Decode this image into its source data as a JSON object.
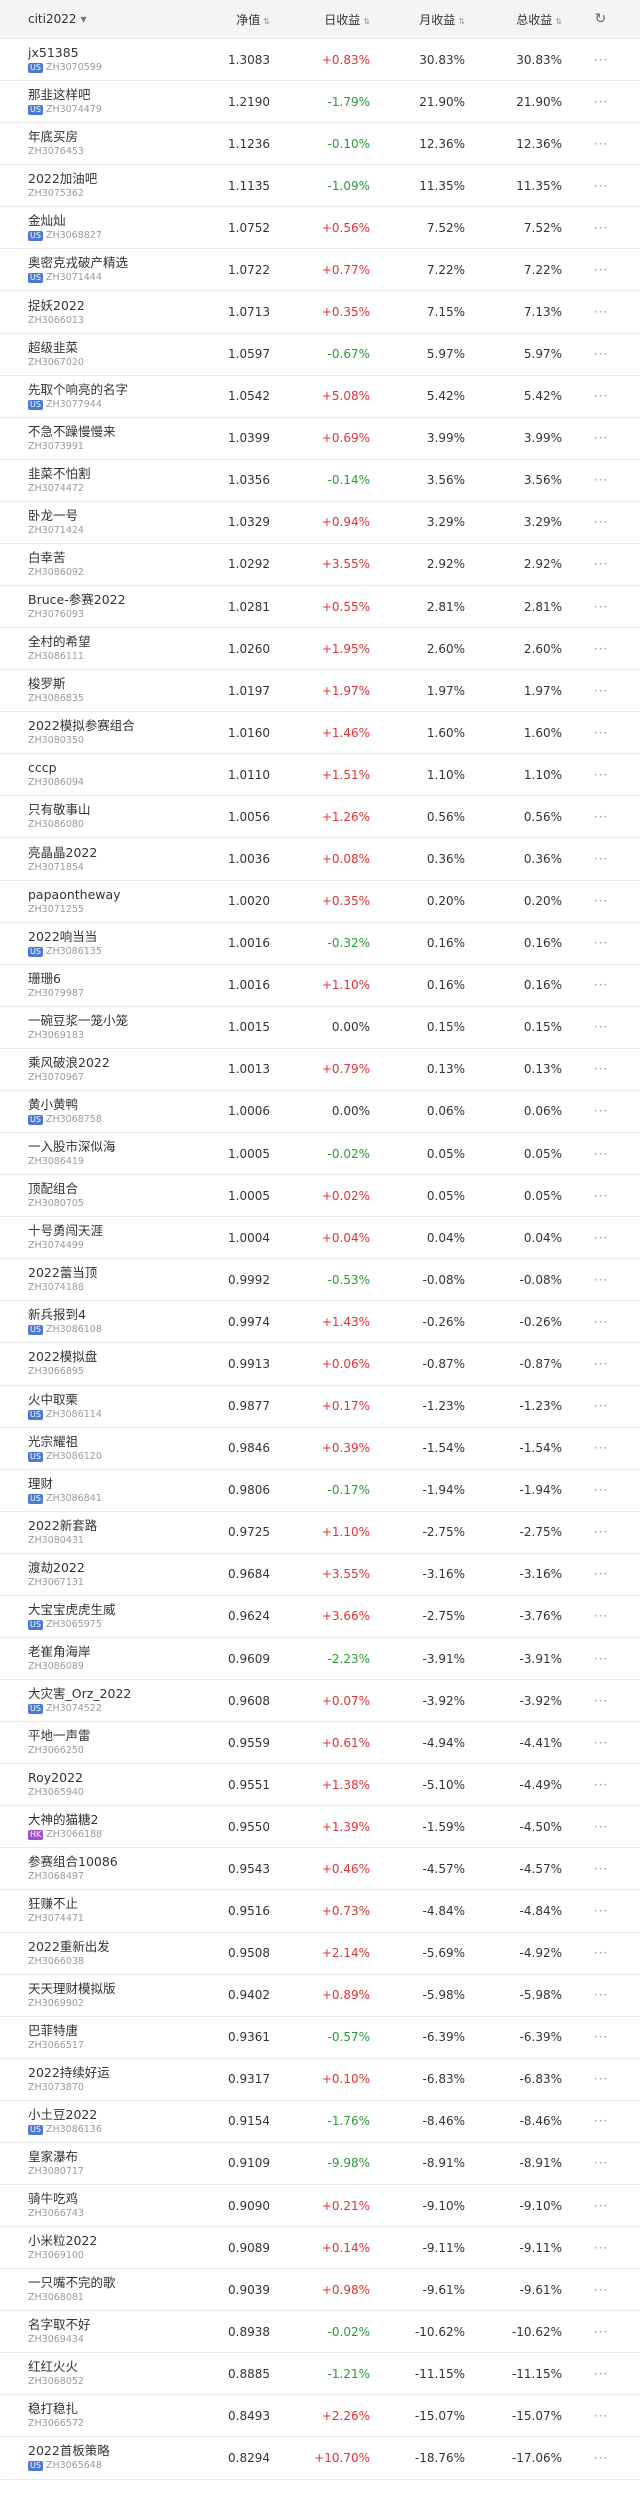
{
  "header": {
    "group_select": "citi2022",
    "col_nav": "净值",
    "col_day": "日收益",
    "col_month": "月收益",
    "col_total": "总收益"
  },
  "colors": {
    "positive": "#e33232",
    "negative": "#2c9b36",
    "us_tag": "#4a79d8",
    "hk_tag": "#a04fd1"
  },
  "rows": [
    {
      "name": "jx51385",
      "tag": "US",
      "code": "ZH3070599",
      "nav": "1.3083",
      "day": "+0.83%",
      "month": "30.83%",
      "total": "30.83%"
    },
    {
      "name": "那韭这样吧",
      "tag": "US",
      "code": "ZH3074479",
      "nav": "1.2190",
      "day": "-1.79%",
      "month": "21.90%",
      "total": "21.90%"
    },
    {
      "name": "年底买房",
      "tag": "",
      "code": "ZH3076453",
      "nav": "1.1236",
      "day": "-0.10%",
      "month": "12.36%",
      "total": "12.36%"
    },
    {
      "name": "2022加油吧",
      "tag": "",
      "code": "ZH3075362",
      "nav": "1.1135",
      "day": "-1.09%",
      "month": "11.35%",
      "total": "11.35%"
    },
    {
      "name": "金灿灿",
      "tag": "US",
      "code": "ZH3068827",
      "nav": "1.0752",
      "day": "+0.56%",
      "month": "7.52%",
      "total": "7.52%"
    },
    {
      "name": "奥密克戎破产精选",
      "tag": "US",
      "code": "ZH3071444",
      "nav": "1.0722",
      "day": "+0.77%",
      "month": "7.22%",
      "total": "7.22%"
    },
    {
      "name": "捉妖2022",
      "tag": "",
      "code": "ZH3066013",
      "nav": "1.0713",
      "day": "+0.35%",
      "month": "7.15%",
      "total": "7.13%"
    },
    {
      "name": "超级韭菜",
      "tag": "",
      "code": "ZH3067020",
      "nav": "1.0597",
      "day": "-0.67%",
      "month": "5.97%",
      "total": "5.97%"
    },
    {
      "name": "先取个响亮的名字",
      "tag": "US",
      "code": "ZH3077944",
      "nav": "1.0542",
      "day": "+5.08%",
      "month": "5.42%",
      "total": "5.42%"
    },
    {
      "name": "不急不躁慢慢来",
      "tag": "",
      "code": "ZH3073991",
      "nav": "1.0399",
      "day": "+0.69%",
      "month": "3.99%",
      "total": "3.99%"
    },
    {
      "name": "韭菜不怕割",
      "tag": "",
      "code": "ZH3074472",
      "nav": "1.0356",
      "day": "-0.14%",
      "month": "3.56%",
      "total": "3.56%"
    },
    {
      "name": "卧龙一号",
      "tag": "",
      "code": "ZH3071424",
      "nav": "1.0329",
      "day": "+0.94%",
      "month": "3.29%",
      "total": "3.29%"
    },
    {
      "name": "白幸苦",
      "tag": "",
      "code": "ZH3086092",
      "nav": "1.0292",
      "day": "+3.55%",
      "month": "2.92%",
      "total": "2.92%"
    },
    {
      "name": "Bruce-参赛2022",
      "tag": "",
      "code": "ZH3076093",
      "nav": "1.0281",
      "day": "+0.55%",
      "month": "2.81%",
      "total": "2.81%"
    },
    {
      "name": "全村的希望",
      "tag": "",
      "code": "ZH3086111",
      "nav": "1.0260",
      "day": "+1.95%",
      "month": "2.60%",
      "total": "2.60%"
    },
    {
      "name": "梭罗斯",
      "tag": "",
      "code": "ZH3086835",
      "nav": "1.0197",
      "day": "+1.97%",
      "month": "1.97%",
      "total": "1.97%"
    },
    {
      "name": "2022模拟参赛组合",
      "tag": "",
      "code": "ZH3080350",
      "nav": "1.0160",
      "day": "+1.46%",
      "month": "1.60%",
      "total": "1.60%"
    },
    {
      "name": "cccp",
      "tag": "",
      "code": "ZH3086094",
      "nav": "1.0110",
      "day": "+1.51%",
      "month": "1.10%",
      "total": "1.10%"
    },
    {
      "name": "只有敬事山",
      "tag": "",
      "code": "ZH3086080",
      "nav": "1.0056",
      "day": "+1.26%",
      "month": "0.56%",
      "total": "0.56%"
    },
    {
      "name": "亮晶晶2022",
      "tag": "",
      "code": "ZH3071854",
      "nav": "1.0036",
      "day": "+0.08%",
      "month": "0.36%",
      "total": "0.36%"
    },
    {
      "name": "papaontheway",
      "tag": "",
      "code": "ZH3071255",
      "nav": "1.0020",
      "day": "+0.35%",
      "month": "0.20%",
      "total": "0.20%"
    },
    {
      "name": "2022响当当",
      "tag": "US",
      "code": "ZH3086135",
      "nav": "1.0016",
      "day": "-0.32%",
      "month": "0.16%",
      "total": "0.16%"
    },
    {
      "name": "珊珊6",
      "tag": "",
      "code": "ZH3079987",
      "nav": "1.0016",
      "day": "+1.10%",
      "month": "0.16%",
      "total": "0.16%"
    },
    {
      "name": "一碗豆浆一笼小笼",
      "tag": "",
      "code": "ZH3069183",
      "nav": "1.0015",
      "day": "0.00%",
      "month": "0.15%",
      "total": "0.15%"
    },
    {
      "name": "乘风破浪2022",
      "tag": "",
      "code": "ZH3070967",
      "nav": "1.0013",
      "day": "+0.79%",
      "month": "0.13%",
      "total": "0.13%"
    },
    {
      "name": "黄小黄鸭",
      "tag": "US",
      "code": "ZH3068758",
      "nav": "1.0006",
      "day": "0.00%",
      "month": "0.06%",
      "total": "0.06%"
    },
    {
      "name": "一入股市深似海",
      "tag": "",
      "code": "ZH3086419",
      "nav": "1.0005",
      "day": "-0.02%",
      "month": "0.05%",
      "total": "0.05%"
    },
    {
      "name": "顶配组合",
      "tag": "",
      "code": "ZH3080705",
      "nav": "1.0005",
      "day": "+0.02%",
      "month": "0.05%",
      "total": "0.05%"
    },
    {
      "name": "十号勇闯天涯",
      "tag": "",
      "code": "ZH3074499",
      "nav": "1.0004",
      "day": "+0.04%",
      "month": "0.04%",
      "total": "0.04%"
    },
    {
      "name": "2022蕾当顶",
      "tag": "",
      "code": "ZH3074188",
      "nav": "0.9992",
      "day": "-0.53%",
      "month": "-0.08%",
      "total": "-0.08%"
    },
    {
      "name": "新兵报到4",
      "tag": "US",
      "code": "ZH3086108",
      "nav": "0.9974",
      "day": "+1.43%",
      "month": "-0.26%",
      "total": "-0.26%"
    },
    {
      "name": "2022模拟盘",
      "tag": "",
      "code": "ZH3066895",
      "nav": "0.9913",
      "day": "+0.06%",
      "month": "-0.87%",
      "total": "-0.87%"
    },
    {
      "name": "火中取栗",
      "tag": "US",
      "code": "ZH3086114",
      "nav": "0.9877",
      "day": "+0.17%",
      "month": "-1.23%",
      "total": "-1.23%"
    },
    {
      "name": "光宗耀祖",
      "tag": "US",
      "code": "ZH3086120",
      "nav": "0.9846",
      "day": "+0.39%",
      "month": "-1.54%",
      "total": "-1.54%"
    },
    {
      "name": "理财",
      "tag": "US",
      "code": "ZH3086841",
      "nav": "0.9806",
      "day": "-0.17%",
      "month": "-1.94%",
      "total": "-1.94%"
    },
    {
      "name": "2022新套路",
      "tag": "",
      "code": "ZH3080431",
      "nav": "0.9725",
      "day": "+1.10%",
      "month": "-2.75%",
      "total": "-2.75%"
    },
    {
      "name": "渡劫2022",
      "tag": "",
      "code": "ZH3067131",
      "nav": "0.9684",
      "day": "+3.55%",
      "month": "-3.16%",
      "total": "-3.16%"
    },
    {
      "name": "大宝宝虎虎生威",
      "tag": "US",
      "code": "ZH3065975",
      "nav": "0.9624",
      "day": "+3.66%",
      "month": "-2.75%",
      "total": "-3.76%"
    },
    {
      "name": "老崔角海岸",
      "tag": "",
      "code": "ZH3086089",
      "nav": "0.9609",
      "day": "-2.23%",
      "month": "-3.91%",
      "total": "-3.91%"
    },
    {
      "name": "大灾害_Orz_2022",
      "tag": "US",
      "code": "ZH3074522",
      "nav": "0.9608",
      "day": "+0.07%",
      "month": "-3.92%",
      "total": "-3.92%"
    },
    {
      "name": "平地一声雷",
      "tag": "",
      "code": "ZH3066250",
      "nav": "0.9559",
      "day": "+0.61%",
      "month": "-4.94%",
      "total": "-4.41%"
    },
    {
      "name": "Roy2022",
      "tag": "",
      "code": "ZH3065940",
      "nav": "0.9551",
      "day": "+1.38%",
      "month": "-5.10%",
      "total": "-4.49%"
    },
    {
      "name": "大神的猫糖2",
      "tag": "HK",
      "code": "ZH3066188",
      "nav": "0.9550",
      "day": "+1.39%",
      "month": "-1.59%",
      "total": "-4.50%"
    },
    {
      "name": "参赛组合10086",
      "tag": "",
      "code": "ZH3068497",
      "nav": "0.9543",
      "day": "+0.46%",
      "month": "-4.57%",
      "total": "-4.57%"
    },
    {
      "name": "狂赚不止",
      "tag": "",
      "code": "ZH3074471",
      "nav": "0.9516",
      "day": "+0.73%",
      "month": "-4.84%",
      "total": "-4.84%"
    },
    {
      "name": "2022重新出发",
      "tag": "",
      "code": "ZH3066038",
      "nav": "0.9508",
      "day": "+2.14%",
      "month": "-5.69%",
      "total": "-4.92%"
    },
    {
      "name": "天天理财模拟版",
      "tag": "",
      "code": "ZH3069902",
      "nav": "0.9402",
      "day": "+0.89%",
      "month": "-5.98%",
      "total": "-5.98%"
    },
    {
      "name": "巴菲特唐",
      "tag": "",
      "code": "ZH3066517",
      "nav": "0.9361",
      "day": "-0.57%",
      "month": "-6.39%",
      "total": "-6.39%"
    },
    {
      "name": "2022持续好运",
      "tag": "",
      "code": "ZH3073870",
      "nav": "0.9317",
      "day": "+0.10%",
      "month": "-6.83%",
      "total": "-6.83%"
    },
    {
      "name": "小土豆2022",
      "tag": "US",
      "code": "ZH3086136",
      "nav": "0.9154",
      "day": "-1.76%",
      "month": "-8.46%",
      "total": "-8.46%"
    },
    {
      "name": "皇家瀑布",
      "tag": "",
      "code": "ZH3080717",
      "nav": "0.9109",
      "day": "-9.98%",
      "month": "-8.91%",
      "total": "-8.91%"
    },
    {
      "name": "骑牛吃鸡",
      "tag": "",
      "code": "ZH3066743",
      "nav": "0.9090",
      "day": "+0.21%",
      "month": "-9.10%",
      "total": "-9.10%"
    },
    {
      "name": "小米粒2022",
      "tag": "",
      "code": "ZH3069100",
      "nav": "0.9089",
      "day": "+0.14%",
      "month": "-9.11%",
      "total": "-9.11%"
    },
    {
      "name": "一只嘴不完的歌",
      "tag": "",
      "code": "ZH3068081",
      "nav": "0.9039",
      "day": "+0.98%",
      "month": "-9.61%",
      "total": "-9.61%"
    },
    {
      "name": "名字取不好",
      "tag": "",
      "code": "ZH3069434",
      "nav": "0.8938",
      "day": "-0.02%",
      "month": "-10.62%",
      "total": "-10.62%"
    },
    {
      "name": "红红火火",
      "tag": "",
      "code": "ZH3068052",
      "nav": "0.8885",
      "day": "-1.21%",
      "month": "-11.15%",
      "total": "-11.15%"
    },
    {
      "name": "稳打稳扎",
      "tag": "",
      "code": "ZH3066572",
      "nav": "0.8493",
      "day": "+2.26%",
      "month": "-15.07%",
      "total": "-15.07%"
    },
    {
      "name": "2022首板策略",
      "tag": "US",
      "code": "ZH3065648",
      "nav": "0.8294",
      "day": "+10.70%",
      "month": "-18.76%",
      "total": "-17.06%"
    }
  ]
}
